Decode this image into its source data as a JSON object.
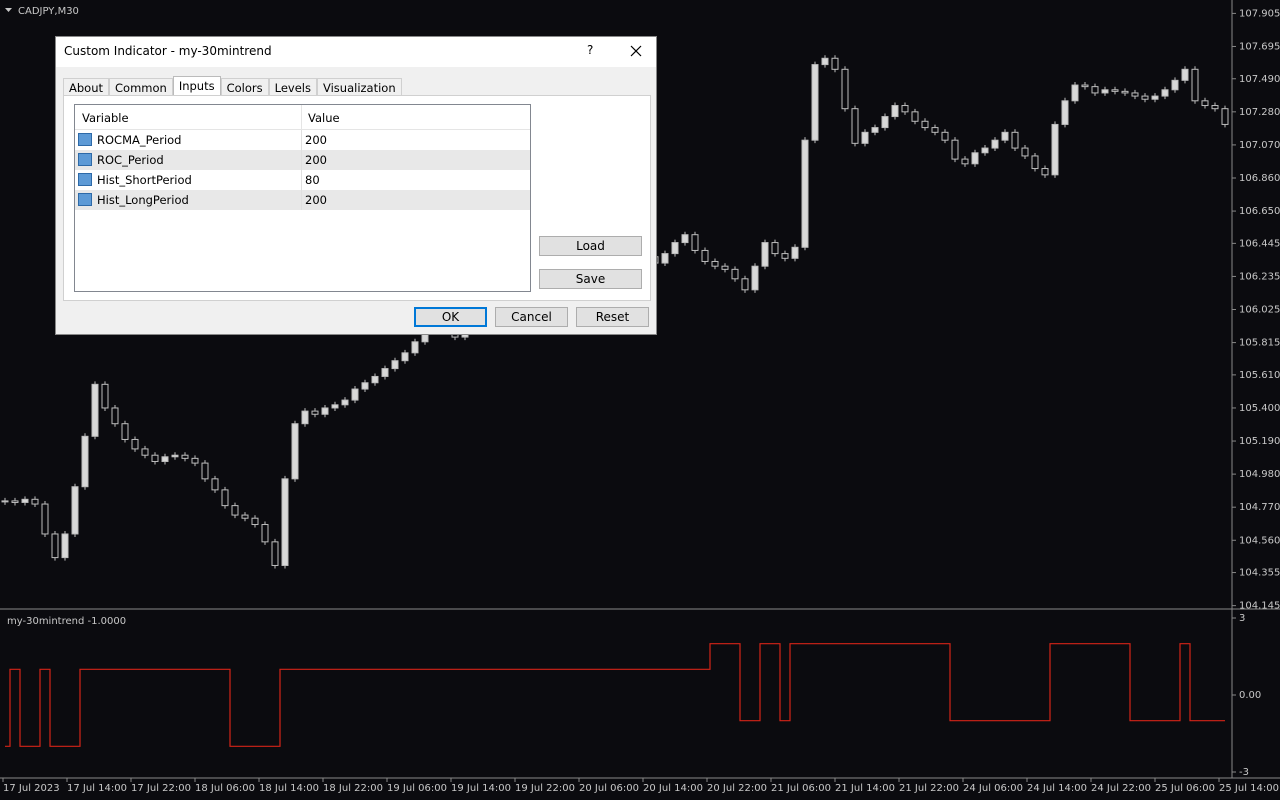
{
  "chart_data": [
    {
      "type": "candlestick",
      "title": "CADJPY,M30",
      "values": [
        104.81,
        104.8,
        104.82,
        104.79,
        104.6,
        104.45,
        104.6,
        104.9,
        105.22,
        105.55,
        105.4,
        105.3,
        105.2,
        105.14,
        105.1,
        105.06,
        105.09,
        105.1,
        105.08,
        105.05,
        104.95,
        104.88,
        104.78,
        104.72,
        104.7,
        104.66,
        104.55,
        104.4,
        104.95,
        105.3,
        105.38,
        105.36,
        105.4,
        105.42,
        105.45,
        105.52,
        105.56,
        105.6,
        105.65,
        105.7,
        105.75,
        105.82,
        105.9,
        106.0,
        106.05,
        105.85,
        105.95,
        106.05,
        106.1,
        106.15,
        106.2,
        106.18,
        106.22,
        106.25,
        106.28,
        106.24,
        106.3,
        106.32,
        106.28,
        106.33,
        106.36,
        106.35,
        106.38,
        106.34,
        106.36,
        106.32,
        106.38,
        106.45,
        106.5,
        106.4,
        106.33,
        106.3,
        106.28,
        106.22,
        106.15,
        106.3,
        106.45,
        106.38,
        106.35,
        106.42,
        107.1,
        107.58,
        107.62,
        107.55,
        107.3,
        107.08,
        107.15,
        107.18,
        107.25,
        107.32,
        107.28,
        107.22,
        107.18,
        107.15,
        107.1,
        106.98,
        106.95,
        107.02,
        107.05,
        107.1,
        107.15,
        107.05,
        107.0,
        106.92,
        106.88,
        107.2,
        107.35,
        107.45,
        107.44,
        107.4,
        107.42,
        107.41,
        107.4,
        107.38,
        107.36,
        107.38,
        107.42,
        107.48,
        107.55,
        107.35,
        107.32,
        107.3,
        107.2
      ],
      "ylim": [
        104.13,
        107.99
      ],
      "yticks": [
        107.905,
        107.695,
        {
          "value": 107.49,
          "label": "107.490"
        },
        {
          "value": 107.28,
          "label": "107.280"
        },
        {
          "value": 107.07,
          "label": "107.070"
        },
        {
          "value": 106.86,
          "label": "106.860"
        },
        {
          "value": 106.65,
          "label": "106.650"
        },
        106.445,
        106.235,
        106.025,
        105.815,
        {
          "value": 105.61,
          "label": "105.610"
        },
        {
          "value": 105.4,
          "label": "105.400"
        },
        {
          "value": 105.19,
          "label": "105.190"
        },
        {
          "value": 104.98,
          "label": "104.980"
        },
        {
          "value": 104.77,
          "label": "104.770"
        },
        {
          "value": 104.56,
          "label": "104.560"
        },
        104.355,
        104.145
      ],
      "x_tick_labels": [
        "17 Jul 2023",
        "17 Jul 14:00",
        "17 Jul 22:00",
        "18 Jul 06:00",
        "18 Jul 14:00",
        "18 Jul 22:00",
        "19 Jul 06:00",
        "19 Jul 14:00",
        "19 Jul 22:00",
        "20 Jul 06:00",
        "20 Jul 14:00",
        "20 Jul 22:00",
        "21 Jul 06:00",
        "21 Jul 14:00",
        "21 Jul 22:00",
        "24 Jul 06:00",
        "24 Jul 14:00",
        "24 Jul 22:00",
        "25 Jul 06:00",
        "25 Jul 14:00"
      ]
    },
    {
      "type": "line",
      "title": "my-30mintrend -1.0000",
      "color": "#d42418",
      "values": [
        -2,
        1,
        -2,
        -2,
        1,
        -2,
        -2,
        -2,
        1,
        1,
        1,
        1,
        1,
        1,
        1,
        1,
        1,
        1,
        1,
        1,
        1,
        1,
        1,
        -2,
        -2,
        -2,
        -2,
        -2,
        1,
        1,
        1,
        1,
        1,
        1,
        1,
        1,
        1,
        1,
        1,
        1,
        1,
        1,
        1,
        1,
        1,
        1,
        1,
        1,
        1,
        1,
        1,
        1,
        1,
        1,
        1,
        1,
        1,
        1,
        1,
        1,
        1,
        1,
        1,
        1,
        1,
        1,
        1,
        1,
        1,
        1,
        1,
        2,
        2,
        2,
        -1,
        -1,
        2,
        2,
        -1,
        2,
        2,
        2,
        2,
        2,
        2,
        2,
        2,
        2,
        2,
        2,
        2,
        2,
        2,
        2,
        2,
        -1,
        -1,
        -1,
        -1,
        -1,
        -1,
        -1,
        -1,
        -1,
        -1,
        2,
        2,
        2,
        2,
        2,
        2,
        2,
        2,
        -1,
        -1,
        -1,
        -1,
        -1,
        2,
        -1,
        -1,
        -1,
        -1
      ],
      "ylim": [
        -3,
        3
      ],
      "yticks": [
        3,
        {
          "value": 0,
          "label": "0.00"
        },
        -3
      ]
    }
  ],
  "dialog": {
    "title": "Custom Indicator - my-30mintrend",
    "help": "?",
    "tabs": [
      "About",
      "Common",
      "Inputs",
      "Colors",
      "Levels",
      "Visualization"
    ],
    "active_tab": "Inputs",
    "columns": [
      "Variable",
      "Value"
    ],
    "rows": [
      [
        "ROCMA_Period",
        200
      ],
      [
        "ROC_Period",
        200
      ],
      [
        "Hist_ShortPeriod",
        80
      ],
      [
        "Hist_LongPeriod",
        200
      ]
    ],
    "buttons": {
      "load": "Load",
      "save": "Save",
      "ok": "OK",
      "cancel": "Cancel",
      "reset": "Reset"
    }
  }
}
